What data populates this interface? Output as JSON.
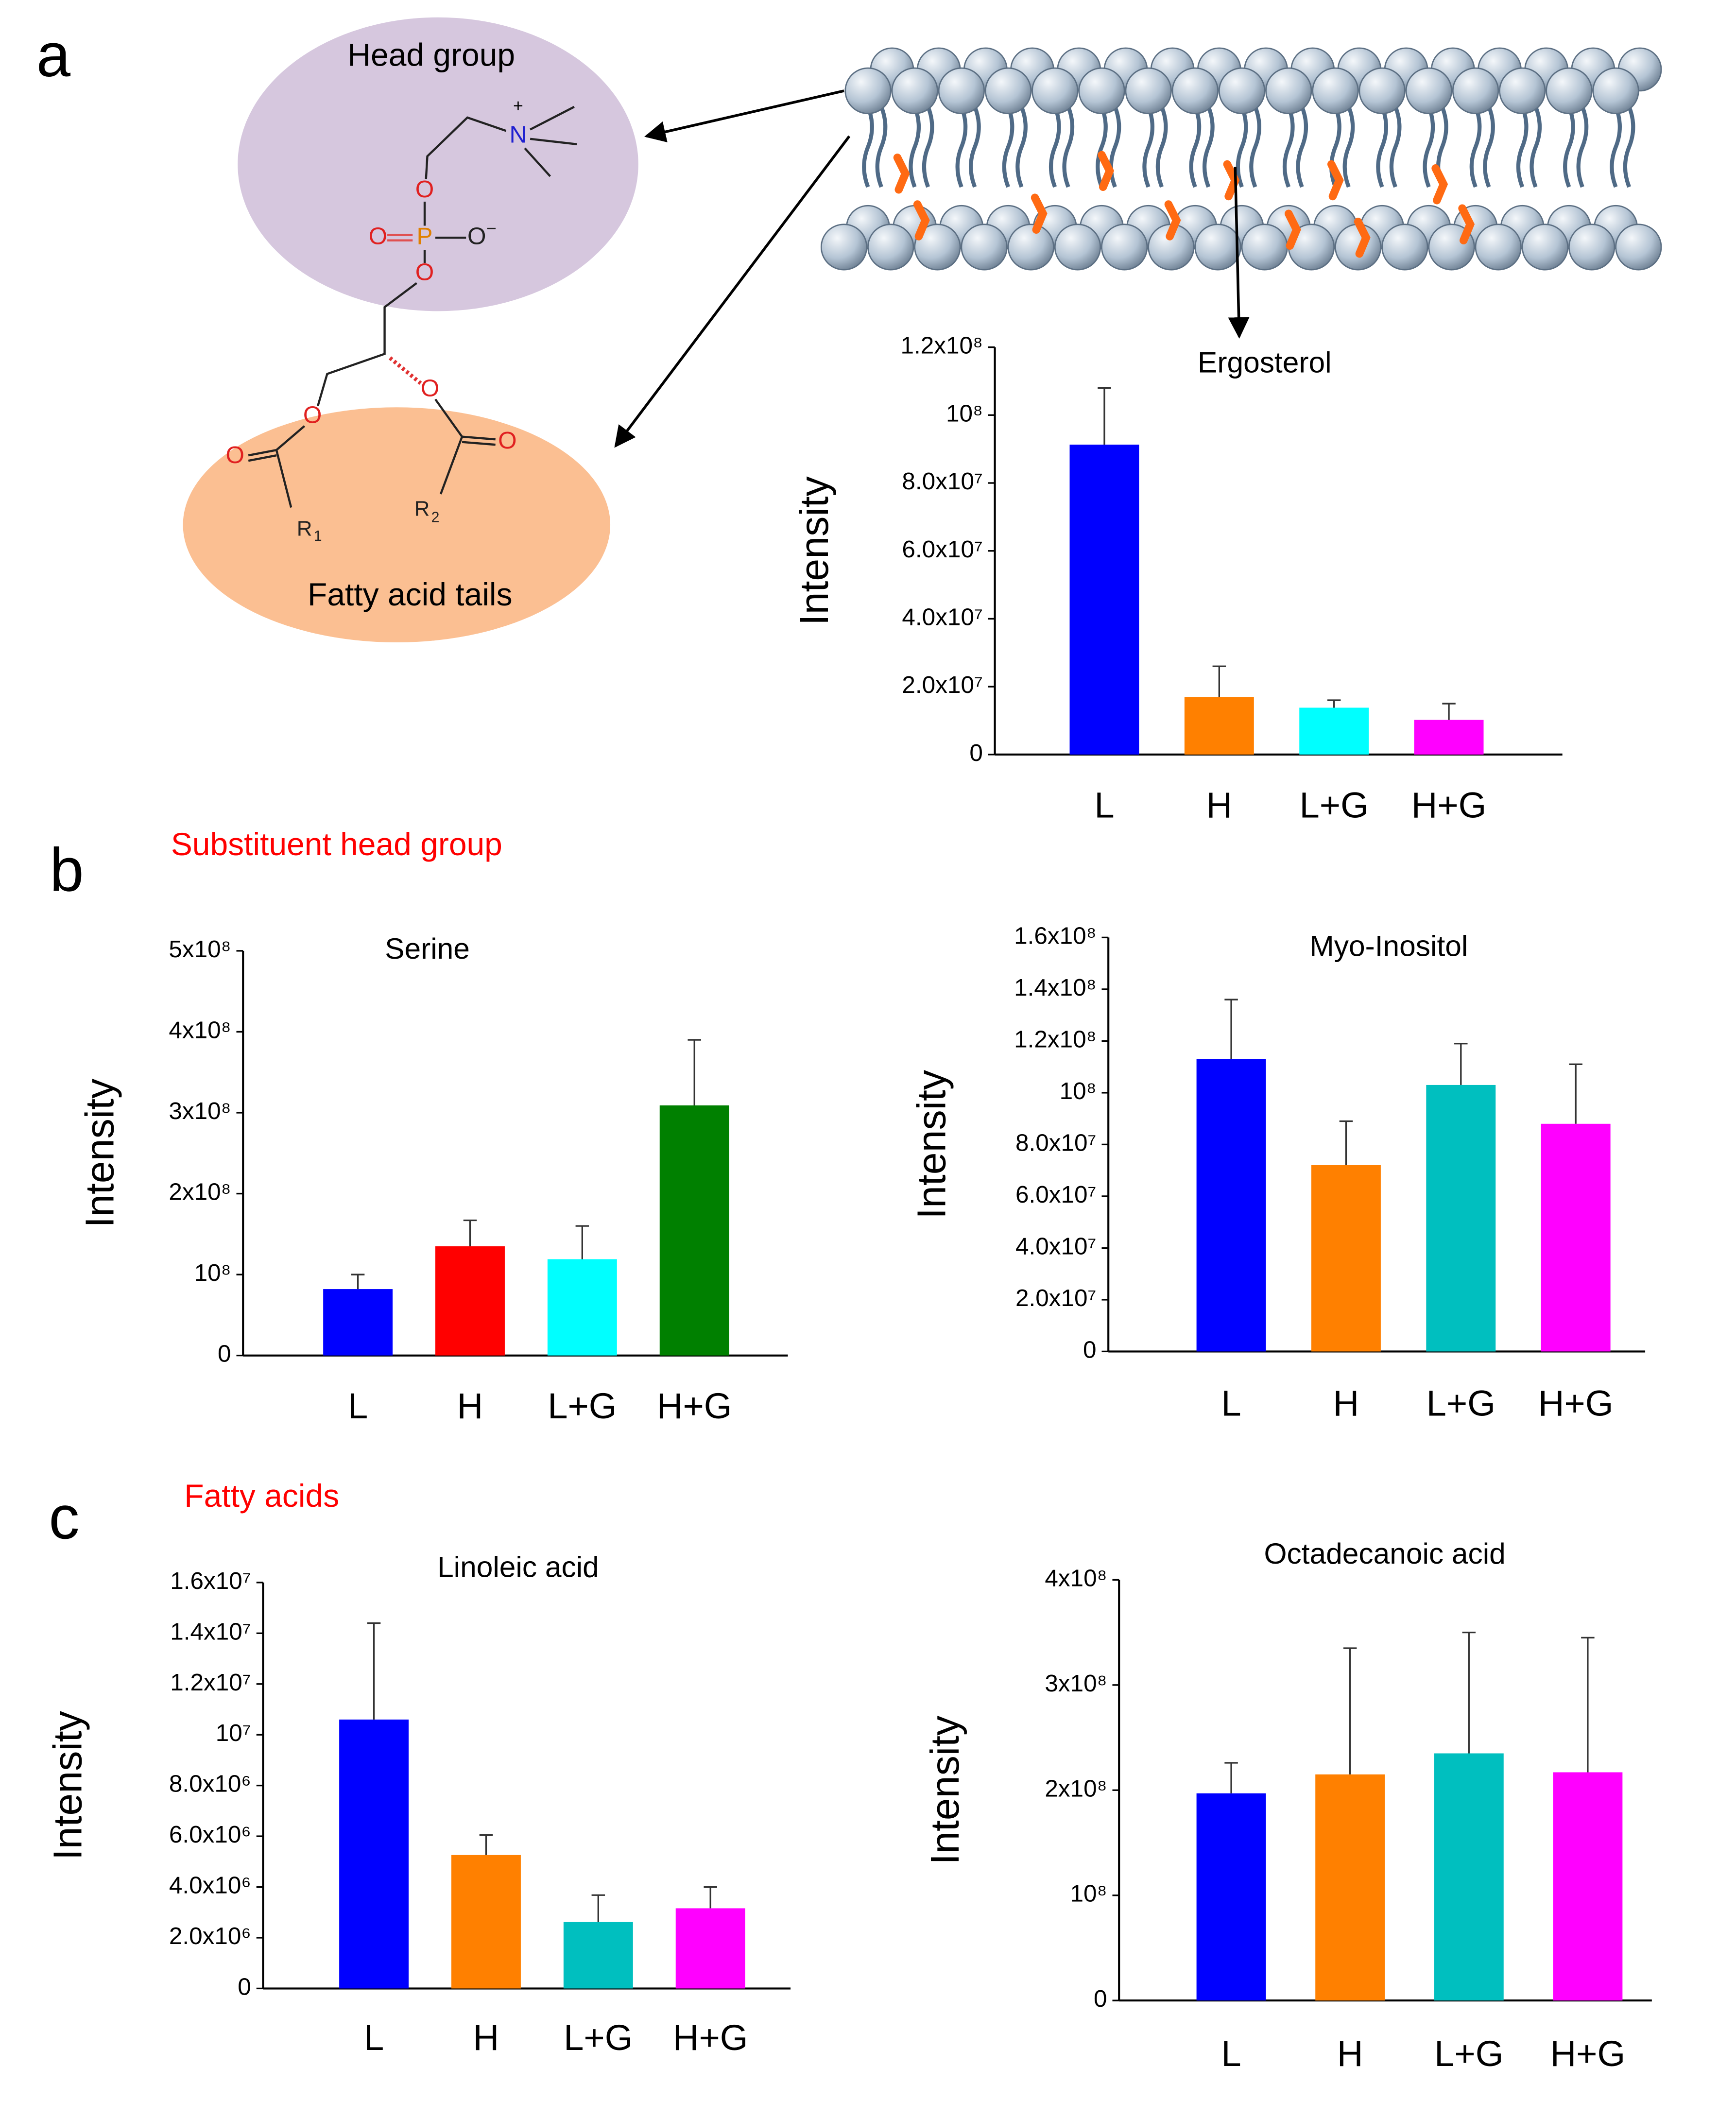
{
  "figure": {
    "panels": [
      "a",
      "b",
      "c"
    ],
    "head_group": "Head group",
    "fatty_tails": "Fatty acid tails",
    "section_b": "Substituent head group",
    "section_c": "Fatty acids",
    "atoms": [
      "N",
      "+",
      "O",
      "P",
      "O",
      "O",
      "−",
      "O",
      "O",
      "O",
      "O",
      "O",
      "R",
      "1",
      "R",
      "2"
    ]
  },
  "chart_data": [
    {
      "type": "bar",
      "title": "Ergosterol",
      "ylabel": "Intensity",
      "categories": [
        "L",
        "H",
        "L+G",
        "H+G"
      ],
      "values": [
        91300000,
        16900000,
        13800000,
        10200000
      ],
      "errors": [
        16700000,
        9100000,
        2200000,
        4800000
      ],
      "colors": [
        "#0000ff",
        "#ff8000",
        "#00ffff",
        "#ff00ff"
      ],
      "ylim": [
        0,
        120000000
      ],
      "yticks": [
        0,
        {
          "value": 20000000,
          "label": "2.0x10⁷"
        },
        {
          "value": 40000000,
          "label": "4.0x10⁷"
        },
        {
          "value": 60000000,
          "label": "6.0x10⁷"
        },
        {
          "value": 80000000,
          "label": "8.0x10⁷"
        },
        {
          "value": 100000000,
          "label": "10⁸"
        },
        {
          "value": 120000000,
          "label": "1.2x10⁸"
        }
      ]
    },
    {
      "type": "bar",
      "title": "Serine",
      "ylabel": "Intensity",
      "categories": [
        "L",
        "H",
        "L+G",
        "H+G"
      ],
      "values": [
        82000000,
        135000000,
        119000000,
        309000000
      ],
      "errors": [
        18000000,
        32000000,
        41000000,
        81000000
      ],
      "colors": [
        "#0000ff",
        "#ff0000",
        "#00ffff",
        "#008000"
      ],
      "ylim": [
        0,
        500000000
      ],
      "yticks": [
        0,
        {
          "value": 100000000,
          "label": "10⁸"
        },
        {
          "value": 200000000,
          "label": "2x10⁸"
        },
        {
          "value": 300000000,
          "label": "3x10⁸"
        },
        {
          "value": 400000000,
          "label": "4x10⁸"
        },
        {
          "value": 500000000,
          "label": "5x10⁸"
        }
      ]
    },
    {
      "type": "bar",
      "title": "Myo-Inositol",
      "ylabel": "Intensity",
      "categories": [
        "L",
        "H",
        "L+G",
        "H+G"
      ],
      "values": [
        113000000,
        72000000,
        103000000,
        88000000
      ],
      "errors": [
        23000000,
        17000000,
        16000000,
        23000000
      ],
      "colors": [
        "#0000ff",
        "#ff8000",
        "#00bfbf",
        "#ff00ff"
      ],
      "ylim": [
        0,
        160000000
      ],
      "yticks": [
        0,
        {
          "value": 20000000,
          "label": "2.0x10⁷"
        },
        {
          "value": 40000000,
          "label": "4.0x10⁷"
        },
        {
          "value": 60000000,
          "label": "6.0x10⁷"
        },
        {
          "value": 80000000,
          "label": "8.0x10⁷"
        },
        {
          "value": 100000000,
          "label": "10⁸"
        },
        {
          "value": 120000000,
          "label": "1.2x10⁸"
        },
        {
          "value": 140000000,
          "label": "1.4x10⁸"
        },
        {
          "value": 160000000,
          "label": "1.6x10⁸"
        }
      ]
    },
    {
      "type": "bar",
      "title": "Linoleic acid",
      "ylabel": "Intensity",
      "categories": [
        "L",
        "H",
        "L+G",
        "H+G"
      ],
      "values": [
        10600000,
        5260000,
        2630000,
        3160000
      ],
      "errors": [
        3800000,
        790000,
        1050000,
        840000
      ],
      "colors": [
        "#0000ff",
        "#ff8000",
        "#00bfbf",
        "#ff00ff"
      ],
      "ylim": [
        0,
        16000000
      ],
      "yticks": [
        0,
        {
          "value": 2000000,
          "label": "2.0x10⁶"
        },
        {
          "value": 4000000,
          "label": "4.0x10⁶"
        },
        {
          "value": 6000000,
          "label": "6.0x10⁶"
        },
        {
          "value": 8000000,
          "label": "8.0x10⁶"
        },
        {
          "value": 10000000,
          "label": "10⁷"
        },
        {
          "value": 12000000,
          "label": "1.2x10⁷"
        },
        {
          "value": 14000000,
          "label": "1.4x10⁷"
        },
        {
          "value": 16000000,
          "label": "1.6x10⁷"
        }
      ]
    },
    {
      "type": "bar",
      "title": "Octadecanoic acid",
      "ylabel": "Intensity",
      "categories": [
        "L",
        "H",
        "L+G",
        "H+G"
      ],
      "values": [
        197000000,
        215000000,
        235000000,
        217000000
      ],
      "errors": [
        29000000,
        120000000,
        115000000,
        128000000
      ],
      "colors": [
        "#0000ff",
        "#ff8000",
        "#00bfbf",
        "#ff00ff"
      ],
      "ylim": [
        0,
        400000000
      ],
      "yticks": [
        0,
        {
          "value": 100000000,
          "label": "10⁸"
        },
        {
          "value": 200000000,
          "label": "2x10⁸"
        },
        {
          "value": 300000000,
          "label": "3x10⁸"
        },
        {
          "value": 400000000,
          "label": "4x10⁸"
        }
      ]
    }
  ]
}
